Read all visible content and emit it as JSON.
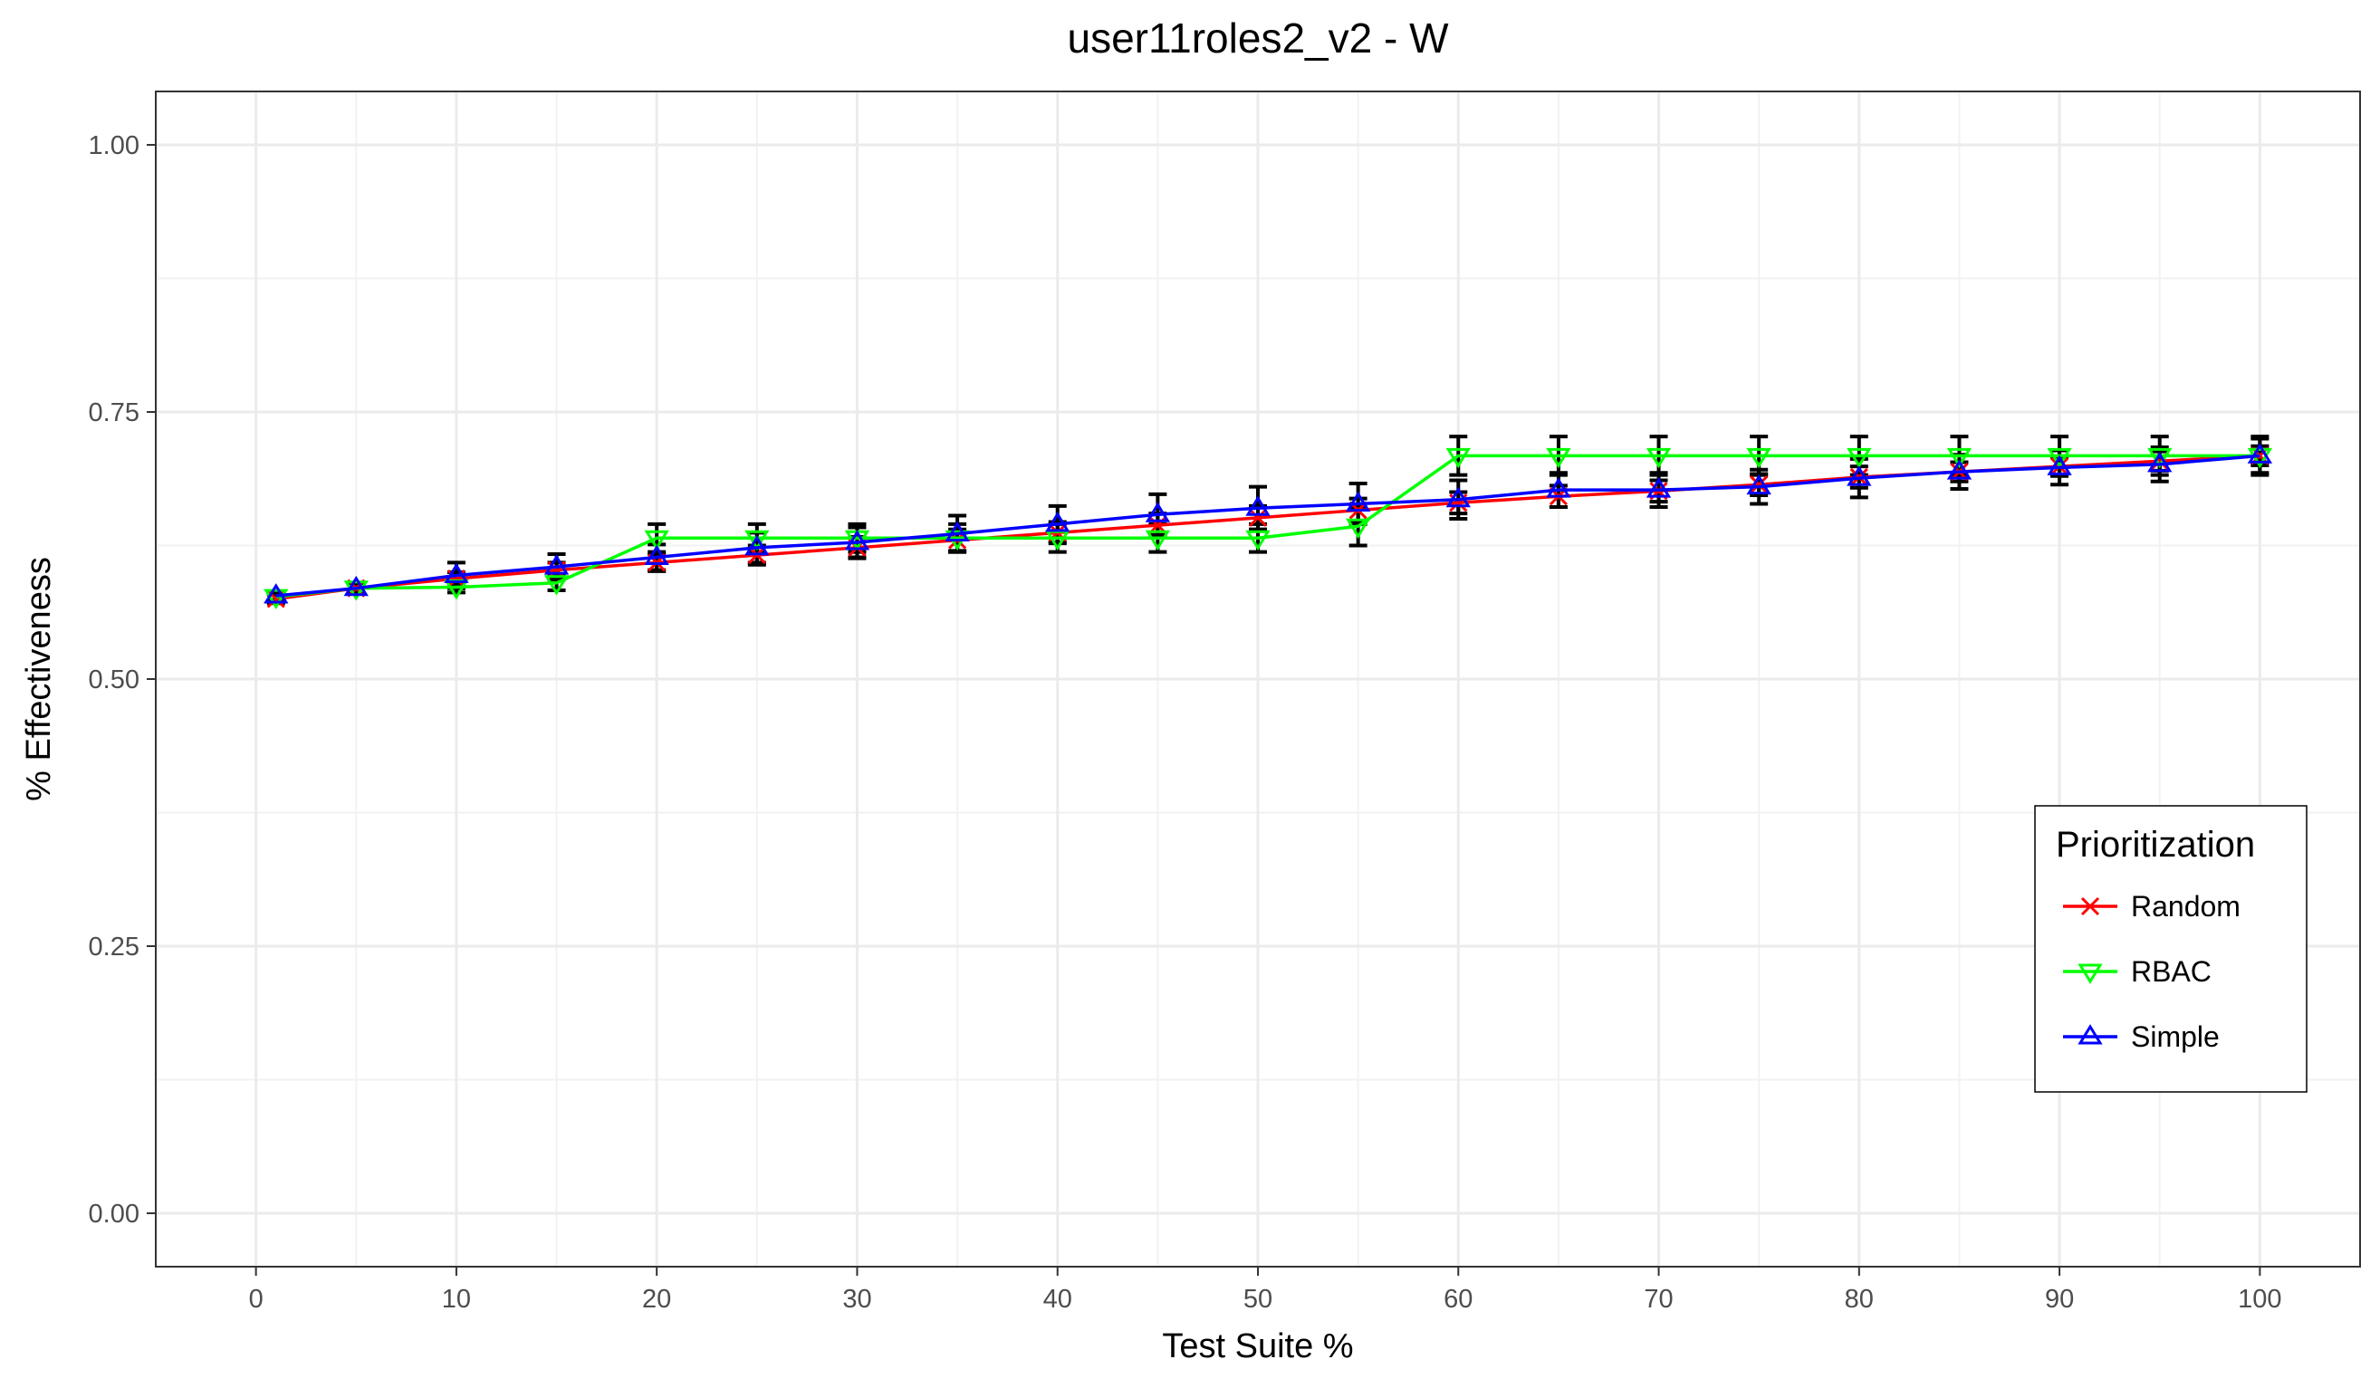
{
  "chart_data": {
    "type": "line",
    "title": "user11roles2_v2 - W",
    "xlabel": "Test Suite %",
    "ylabel": "% Effectiveness",
    "xlim": [
      -5,
      105
    ],
    "ylim": [
      -0.05,
      1.05
    ],
    "x_ticks": [
      0,
      10,
      20,
      30,
      40,
      50,
      60,
      70,
      80,
      90,
      100
    ],
    "x_tick_labels": [
      "0",
      "10",
      "20",
      "30",
      "40",
      "50",
      "60",
      "70",
      "80",
      "90",
      "100"
    ],
    "y_ticks": [
      0,
      0.25,
      0.5,
      0.75,
      1.0
    ],
    "y_tick_labels": [
      "0.00",
      "0.25",
      "0.50",
      "0.75",
      "1.00"
    ],
    "grid": true,
    "legend": {
      "title": "Prioritization",
      "position": "right",
      "entries": [
        "Random",
        "RBAC",
        "Simple"
      ]
    },
    "x": [
      1,
      5,
      10,
      15,
      20,
      25,
      30,
      35,
      40,
      45,
      50,
      55,
      60,
      65,
      70,
      75,
      80,
      85,
      90,
      95,
      100
    ],
    "series": [
      {
        "name": "Random",
        "color": "#ff0000",
        "marker": "x",
        "values": [
          0.575,
          0.585,
          0.594,
          0.602,
          0.609,
          0.616,
          0.623,
          0.63,
          0.637,
          0.644,
          0.651,
          0.658,
          0.665,
          0.671,
          0.676,
          0.682,
          0.689,
          0.694,
          0.699,
          0.704,
          0.709
        ],
        "error": [
          0.004,
          0.005,
          0.006,
          0.007,
          0.008,
          0.009,
          0.01,
          0.01,
          0.01,
          0.011,
          0.011,
          0.011,
          0.01,
          0.01,
          0.01,
          0.01,
          0.01,
          0.009,
          0.009,
          0.009,
          0.009
        ]
      },
      {
        "name": "RBAC",
        "color": "#00ff00",
        "marker": "triangle-down",
        "values": [
          0.577,
          0.585,
          0.586,
          0.59,
          0.632,
          0.632,
          0.632,
          0.632,
          0.632,
          0.632,
          0.632,
          0.643,
          0.709,
          0.709,
          0.709,
          0.709,
          0.709,
          0.709,
          0.709,
          0.709,
          0.709
        ],
        "error": [
          0.004,
          0.005,
          0.005,
          0.007,
          0.013,
          0.013,
          0.013,
          0.013,
          0.013,
          0.013,
          0.013,
          0.018,
          0.018,
          0.018,
          0.018,
          0.018,
          0.018,
          0.018,
          0.018,
          0.018,
          0.018
        ]
      },
      {
        "name": "Simple",
        "color": "#0000ff",
        "marker": "triangle-up",
        "values": [
          0.578,
          0.585,
          0.597,
          0.605,
          0.614,
          0.623,
          0.628,
          0.636,
          0.645,
          0.654,
          0.66,
          0.664,
          0.668,
          0.677,
          0.677,
          0.68,
          0.688,
          0.694,
          0.698,
          0.701,
          0.709
        ],
        "error": [
          0.004,
          0.005,
          0.012,
          0.012,
          0.012,
          0.014,
          0.014,
          0.017,
          0.017,
          0.019,
          0.02,
          0.019,
          0.018,
          0.016,
          0.016,
          0.016,
          0.018,
          0.016,
          0.016,
          0.016,
          0.016
        ]
      }
    ]
  }
}
